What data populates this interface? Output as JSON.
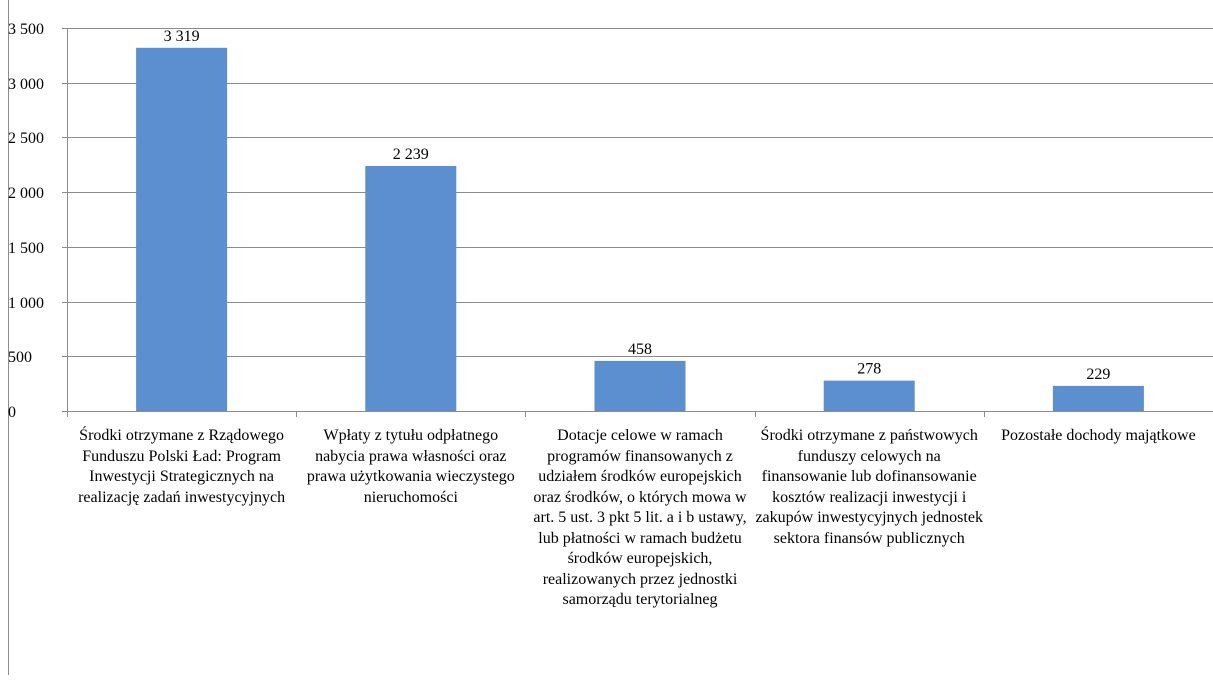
{
  "chart_data": {
    "type": "bar",
    "title": "",
    "xlabel": "",
    "ylabel": "",
    "categories": [
      "Środki otrzymane z Rządowego Funduszu Polski Ład: Program Inwestycji Strategicznych na realizację zadań inwestycyjnych",
      "Wpłaty z tytułu odpłatnego nabycia prawa własności oraz prawa użytkowania wieczystego nieruchomości",
      "Dotacje celowe w ramach programów finansowanych z udziałem środków europejskich oraz środków, o których mowa w art. 5 ust. 3 pkt 5 lit. a i b ustawy, lub płatności w ramach budżetu środków europejskich, realizowanych przez jednostki samorządu terytorialneg",
      "Środki otrzymane z państwowych funduszy celowych na finansowanie lub dofinansowanie kosztów realizacji inwestycji i zakupów inwestycyjnych jednostek sektora finansów publicznych",
      "Pozostałe dochody majątkowe"
    ],
    "values": [
      3319,
      2239,
      458,
      278,
      229
    ],
    "value_labels": [
      "3 319",
      "2 239",
      "458",
      "278",
      "229"
    ],
    "ylim": [
      0,
      3500
    ],
    "y_ticks": [
      0,
      500,
      1000,
      1500,
      2000,
      2500,
      3000,
      3500
    ],
    "y_tick_labels": [
      "0",
      "500",
      "1 000",
      "1 500",
      "2 000",
      "2 500",
      "3 000",
      "3 500"
    ],
    "grid": true,
    "legend": "none",
    "bar_color": "#5b8fd0",
    "grid_color": "#8c8c8c"
  }
}
